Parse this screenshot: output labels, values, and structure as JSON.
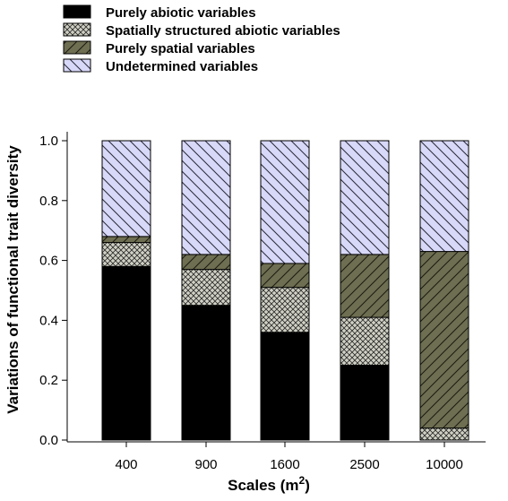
{
  "chart_data": {
    "type": "bar",
    "stacked": true,
    "categories": [
      "400",
      "900",
      "1600",
      "2500",
      "10000"
    ],
    "series": [
      {
        "name": "Purely abiotic variables",
        "values": [
          0.58,
          0.45,
          0.36,
          0.25,
          0.0
        ],
        "fill": "solid-black"
      },
      {
        "name": "Spatially structured abiotic variables",
        "values": [
          0.08,
          0.12,
          0.15,
          0.16,
          0.04
        ],
        "fill": "crosshatch-grey"
      },
      {
        "name": "Purely spatial variables",
        "values": [
          0.02,
          0.05,
          0.08,
          0.21,
          0.59
        ],
        "fill": "diagonal-olive"
      },
      {
        "name": "Undetermined variables",
        "values": [
          0.32,
          0.38,
          0.41,
          0.38,
          0.37
        ],
        "fill": "diagonal-lavender"
      }
    ],
    "xlabel": "Scales (m",
    "xlabel_sup": "2",
    "xlabel_close": ")",
    "ylabel": "Variations of functional trait diversity",
    "ylim": [
      0,
      1.0
    ],
    "yticks": [
      "0.0",
      "0.2",
      "0.4",
      "0.6",
      "0.8",
      "1.0"
    ],
    "legend_position": "top-left",
    "grid": false,
    "colors": {
      "abiotic": "#000000",
      "structured_bg": "#d0d0c4",
      "spatial_bg": "#6e6e52",
      "undetermined_bg": "#d8d8f8",
      "hatch_line": "#2a2a2a"
    }
  }
}
